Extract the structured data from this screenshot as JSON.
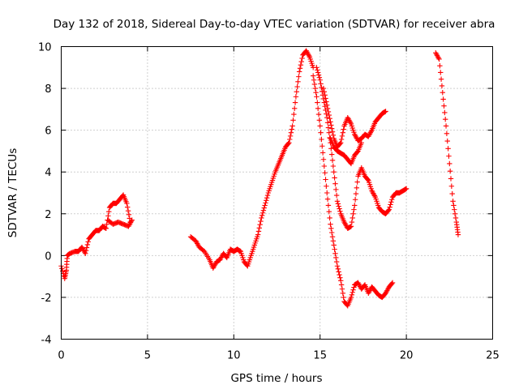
{
  "chart_data": {
    "type": "scatter",
    "title": "Day 132 of 2018, Sidereal Day-to-day VTEC variation (SDTVAR) for receiver abra",
    "xlabel": "GPS time / hours",
    "ylabel": "SDTVAR / TECUs",
    "xlim": [
      0,
      25
    ],
    "ylim": [
      -4,
      10
    ],
    "xticks": [
      "0",
      "5",
      "10",
      "15",
      "20",
      "25"
    ],
    "yticks": [
      "-4",
      "-2",
      "0",
      "2",
      "4",
      "6",
      "8",
      "10"
    ],
    "grid": true,
    "marker": "+",
    "color": "#ff0000",
    "segments": [
      {
        "x": [
          0.0,
          0.2,
          0.3,
          0.35,
          0.5,
          0.8,
          1.0,
          1.2,
          1.4,
          1.6,
          1.8,
          2.0,
          2.2,
          2.4,
          2.6,
          2.8,
          3.0,
          3.2,
          3.4,
          3.6,
          3.8,
          4.0
        ],
        "y": [
          -0.5,
          -1.1,
          -0.7,
          0.0,
          0.1,
          0.2,
          0.2,
          0.4,
          0.1,
          0.8,
          1.0,
          1.2,
          1.2,
          1.4,
          1.3,
          2.3,
          2.5,
          2.5,
          2.7,
          2.9,
          2.5,
          1.6
        ]
      },
      {
        "x": [
          2.7,
          3.0,
          3.3,
          3.6,
          3.9,
          4.1
        ],
        "y": [
          1.7,
          1.5,
          1.6,
          1.5,
          1.4,
          1.7
        ]
      },
      {
        "x": [
          7.5,
          7.8,
          8.0,
          8.3,
          8.6,
          8.8,
          9.0,
          9.2,
          9.4,
          9.6,
          9.8,
          10.0,
          10.2,
          10.4,
          10.6,
          10.8,
          11.0,
          11.2,
          11.4,
          11.6,
          11.8,
          12.0,
          12.2,
          12.4,
          12.6,
          12.8,
          13.0,
          13.2,
          13.4,
          13.6,
          13.8,
          14.0,
          14.2,
          14.4,
          14.6
        ],
        "y": [
          0.9,
          0.7,
          0.4,
          0.2,
          -0.2,
          -0.6,
          -0.3,
          -0.2,
          0.1,
          -0.1,
          0.3,
          0.2,
          0.3,
          0.2,
          -0.3,
          -0.5,
          0.0,
          0.5,
          1.0,
          1.8,
          2.4,
          3.0,
          3.5,
          4.0,
          4.4,
          4.8,
          5.2,
          5.4,
          6.2,
          7.6,
          8.8,
          9.6,
          9.8,
          9.5,
          9.0
        ]
      },
      {
        "x": [
          14.6,
          14.8,
          15.0,
          15.2,
          15.4,
          15.6,
          15.8,
          16.0,
          16.2,
          16.4,
          16.6,
          16.8,
          17.0,
          17.2,
          17.4,
          17.6,
          17.8,
          18.0,
          18.2,
          18.4,
          18.6,
          18.8,
          19.0,
          19.2
        ],
        "y": [
          8.6,
          7.6,
          6.2,
          4.6,
          3.0,
          1.5,
          0.5,
          -0.5,
          -1.2,
          -2.2,
          -2.4,
          -2.0,
          -1.4,
          -1.3,
          -1.6,
          -1.4,
          -1.8,
          -1.5,
          -1.7,
          -1.9,
          -2.0,
          -1.8,
          -1.5,
          -1.3
        ]
      },
      {
        "x": [
          14.8,
          15.0,
          15.2,
          15.4,
          15.6,
          15.8,
          16.0,
          16.2,
          16.4,
          16.6,
          16.8,
          17.0,
          17.2,
          17.4,
          17.6,
          17.8,
          18.0,
          18.2,
          18.4,
          18.6,
          18.8,
          19.0,
          19.2,
          19.4,
          19.6,
          19.8,
          20.0
        ],
        "y": [
          9.0,
          8.4,
          7.5,
          6.6,
          5.4,
          4.0,
          2.6,
          2.0,
          1.6,
          1.3,
          1.4,
          2.4,
          3.8,
          4.2,
          3.8,
          3.6,
          3.1,
          2.8,
          2.3,
          2.1,
          2.0,
          2.2,
          2.8,
          3.0,
          3.0,
          3.1,
          3.2
        ]
      },
      {
        "x": [
          15.2,
          15.4,
          15.6,
          15.8,
          16.0,
          16.2,
          16.4,
          16.6,
          16.8,
          17.0,
          17.2,
          17.4,
          17.6,
          17.8,
          18.0,
          18.2,
          18.4,
          18.6,
          18.8
        ],
        "y": [
          8.0,
          7.2,
          6.4,
          5.6,
          5.2,
          5.4,
          6.2,
          6.6,
          6.3,
          5.8,
          5.5,
          5.6,
          5.8,
          5.7,
          6.0,
          6.4,
          6.6,
          6.8,
          6.9
        ]
      },
      {
        "x": [
          15.6,
          15.8,
          16.0,
          16.2,
          16.4,
          16.6,
          16.8,
          17.0,
          17.2,
          17.4
        ],
        "y": [
          5.6,
          5.2,
          5.0,
          4.9,
          4.8,
          4.6,
          4.4,
          4.8,
          5.0,
          5.4
        ]
      },
      {
        "x": [
          21.7,
          21.9,
          22.1,
          22.3,
          22.5,
          22.7,
          22.9,
          23.0
        ],
        "y": [
          9.7,
          9.4,
          7.8,
          6.2,
          4.4,
          2.6,
          1.6,
          1.0
        ]
      }
    ]
  }
}
